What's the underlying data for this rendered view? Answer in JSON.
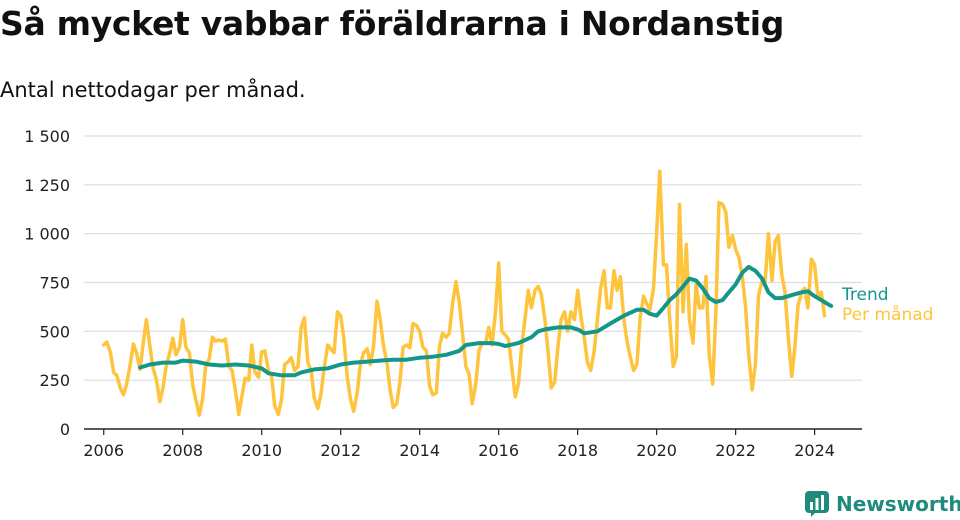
{
  "title": "Så mycket vabbar föräldrarna i Nordanstig",
  "subtitle": "Antal nettodagar per månad.",
  "brand": {
    "name": "Newsworthy",
    "icon": "bar-chart-bubble-icon"
  },
  "colors": {
    "monthly": "#FFC43D",
    "trend": "#14968A",
    "brand": "#1f8a7e",
    "grid": "#dddddd"
  },
  "chart_data": {
    "type": "line",
    "ylim": [
      0,
      1500
    ],
    "xlim": [
      2005.5,
      2025.2
    ],
    "yticks": [
      0,
      250,
      500,
      750,
      1000,
      1250,
      1500
    ],
    "ytick_labels": [
      "0",
      "250",
      "500",
      "750",
      "1 000",
      "1 250",
      "1 500"
    ],
    "xticks": [
      2006,
      2008,
      2010,
      2012,
      2014,
      2016,
      2018,
      2020,
      2022,
      2024
    ],
    "xtick_labels": [
      "2006",
      "2008",
      "2010",
      "2012",
      "2014",
      "2016",
      "2018",
      "2020",
      "2022",
      "2024"
    ],
    "grid": true,
    "series": [
      {
        "name": "Per månad",
        "color": "#FFC43D",
        "points": [
          [
            2006.0,
            430
          ],
          [
            2006.08,
            445
          ],
          [
            2006.17,
            390
          ],
          [
            2006.25,
            290
          ],
          [
            2006.33,
            275
          ],
          [
            2006.42,
            210
          ],
          [
            2006.5,
            175
          ],
          [
            2006.58,
            230
          ],
          [
            2006.67,
            330
          ],
          [
            2006.75,
            435
          ],
          [
            2006.83,
            390
          ],
          [
            2006.92,
            305
          ],
          [
            2007.0,
            440
          ],
          [
            2007.08,
            560
          ],
          [
            2007.17,
            420
          ],
          [
            2007.25,
            310
          ],
          [
            2007.33,
            255
          ],
          [
            2007.42,
            140
          ],
          [
            2007.5,
            210
          ],
          [
            2007.58,
            320
          ],
          [
            2007.67,
            390
          ],
          [
            2007.75,
            465
          ],
          [
            2007.83,
            380
          ],
          [
            2007.92,
            420
          ],
          [
            2008.0,
            560
          ],
          [
            2008.08,
            420
          ],
          [
            2008.17,
            390
          ],
          [
            2008.25,
            230
          ],
          [
            2008.33,
            150
          ],
          [
            2008.42,
            70
          ],
          [
            2008.5,
            150
          ],
          [
            2008.58,
            320
          ],
          [
            2008.67,
            360
          ],
          [
            2008.75,
            470
          ],
          [
            2008.83,
            450
          ],
          [
            2008.92,
            455
          ],
          [
            2009.0,
            450
          ],
          [
            2009.08,
            460
          ],
          [
            2009.17,
            320
          ],
          [
            2009.25,
            300
          ],
          [
            2009.33,
            200
          ],
          [
            2009.42,
            75
          ],
          [
            2009.5,
            170
          ],
          [
            2009.58,
            260
          ],
          [
            2009.67,
            250
          ],
          [
            2009.75,
            430
          ],
          [
            2009.83,
            290
          ],
          [
            2009.92,
            265
          ],
          [
            2010.0,
            395
          ],
          [
            2010.08,
            400
          ],
          [
            2010.17,
            300
          ],
          [
            2010.25,
            270
          ],
          [
            2010.33,
            120
          ],
          [
            2010.42,
            75
          ],
          [
            2010.5,
            150
          ],
          [
            2010.58,
            330
          ],
          [
            2010.67,
            345
          ],
          [
            2010.75,
            365
          ],
          [
            2010.83,
            300
          ],
          [
            2010.92,
            320
          ],
          [
            2011.0,
            520
          ],
          [
            2011.08,
            570
          ],
          [
            2011.17,
            340
          ],
          [
            2011.25,
            300
          ],
          [
            2011.33,
            160
          ],
          [
            2011.42,
            105
          ],
          [
            2011.5,
            180
          ],
          [
            2011.58,
            310
          ],
          [
            2011.67,
            430
          ],
          [
            2011.75,
            410
          ],
          [
            2011.83,
            390
          ],
          [
            2011.92,
            600
          ],
          [
            2012.0,
            580
          ],
          [
            2012.08,
            460
          ],
          [
            2012.17,
            260
          ],
          [
            2012.25,
            150
          ],
          [
            2012.33,
            90
          ],
          [
            2012.42,
            190
          ],
          [
            2012.5,
            330
          ],
          [
            2012.58,
            390
          ],
          [
            2012.67,
            410
          ],
          [
            2012.75,
            330
          ],
          [
            2012.83,
            420
          ],
          [
            2012.92,
            655
          ],
          [
            2013.0,
            560
          ],
          [
            2013.08,
            430
          ],
          [
            2013.17,
            340
          ],
          [
            2013.25,
            200
          ],
          [
            2013.33,
            110
          ],
          [
            2013.42,
            130
          ],
          [
            2013.5,
            240
          ],
          [
            2013.58,
            420
          ],
          [
            2013.67,
            430
          ],
          [
            2013.75,
            415
          ],
          [
            2013.83,
            540
          ],
          [
            2013.92,
            530
          ],
          [
            2014.0,
            500
          ],
          [
            2014.08,
            420
          ],
          [
            2014.17,
            400
          ],
          [
            2014.25,
            220
          ],
          [
            2014.33,
            175
          ],
          [
            2014.42,
            185
          ],
          [
            2014.5,
            420
          ],
          [
            2014.58,
            490
          ],
          [
            2014.67,
            470
          ],
          [
            2014.75,
            490
          ],
          [
            2014.83,
            640
          ],
          [
            2014.92,
            755
          ],
          [
            2015.0,
            650
          ],
          [
            2015.08,
            500
          ],
          [
            2015.17,
            320
          ],
          [
            2015.25,
            280
          ],
          [
            2015.33,
            130
          ],
          [
            2015.42,
            230
          ],
          [
            2015.5,
            400
          ],
          [
            2015.58,
            440
          ],
          [
            2015.67,
            440
          ],
          [
            2015.75,
            520
          ],
          [
            2015.83,
            430
          ],
          [
            2015.92,
            600
          ],
          [
            2016.0,
            850
          ],
          [
            2016.08,
            500
          ],
          [
            2016.17,
            480
          ],
          [
            2016.25,
            460
          ],
          [
            2016.33,
            320
          ],
          [
            2016.42,
            165
          ],
          [
            2016.5,
            230
          ],
          [
            2016.58,
            420
          ],
          [
            2016.67,
            570
          ],
          [
            2016.75,
            710
          ],
          [
            2016.83,
            620
          ],
          [
            2016.92,
            710
          ],
          [
            2017.0,
            730
          ],
          [
            2017.08,
            690
          ],
          [
            2017.17,
            560
          ],
          [
            2017.25,
            400
          ],
          [
            2017.33,
            210
          ],
          [
            2017.42,
            240
          ],
          [
            2017.5,
            420
          ],
          [
            2017.58,
            560
          ],
          [
            2017.67,
            600
          ],
          [
            2017.75,
            500
          ],
          [
            2017.83,
            600
          ],
          [
            2017.92,
            560
          ],
          [
            2018.0,
            710
          ],
          [
            2018.08,
            580
          ],
          [
            2018.17,
            460
          ],
          [
            2018.25,
            340
          ],
          [
            2018.33,
            300
          ],
          [
            2018.42,
            400
          ],
          [
            2018.5,
            560
          ],
          [
            2018.58,
            720
          ],
          [
            2018.67,
            810
          ],
          [
            2018.75,
            620
          ],
          [
            2018.83,
            620
          ],
          [
            2018.92,
            810
          ],
          [
            2019.0,
            710
          ],
          [
            2019.08,
            780
          ],
          [
            2019.17,
            560
          ],
          [
            2019.25,
            450
          ],
          [
            2019.33,
            370
          ],
          [
            2019.42,
            300
          ],
          [
            2019.5,
            330
          ],
          [
            2019.58,
            570
          ],
          [
            2019.67,
            680
          ],
          [
            2019.75,
            640
          ],
          [
            2019.83,
            610
          ],
          [
            2019.92,
            720
          ],
          [
            2020.0,
            1000
          ],
          [
            2020.08,
            1320
          ],
          [
            2020.17,
            840
          ],
          [
            2020.25,
            840
          ],
          [
            2020.33,
            560
          ],
          [
            2020.42,
            320
          ],
          [
            2020.5,
            370
          ],
          [
            2020.58,
            1150
          ],
          [
            2020.67,
            600
          ],
          [
            2020.75,
            945
          ],
          [
            2020.83,
            560
          ],
          [
            2020.92,
            440
          ],
          [
            2021.0,
            740
          ],
          [
            2021.08,
            620
          ],
          [
            2021.17,
            620
          ],
          [
            2021.25,
            780
          ],
          [
            2021.33,
            380
          ],
          [
            2021.42,
            230
          ],
          [
            2021.5,
            600
          ],
          [
            2021.58,
            1160
          ],
          [
            2021.67,
            1150
          ],
          [
            2021.75,
            1110
          ],
          [
            2021.83,
            930
          ],
          [
            2021.92,
            990
          ],
          [
            2022.0,
            920
          ],
          [
            2022.08,
            880
          ],
          [
            2022.17,
            780
          ],
          [
            2022.25,
            630
          ],
          [
            2022.33,
            380
          ],
          [
            2022.42,
            200
          ],
          [
            2022.5,
            330
          ],
          [
            2022.58,
            680
          ],
          [
            2022.67,
            760
          ],
          [
            2022.75,
            760
          ],
          [
            2022.83,
            1000
          ],
          [
            2022.92,
            760
          ],
          [
            2023.0,
            960
          ],
          [
            2023.08,
            990
          ],
          [
            2023.17,
            790
          ],
          [
            2023.25,
            700
          ],
          [
            2023.33,
            480
          ],
          [
            2023.42,
            270
          ],
          [
            2023.5,
            420
          ],
          [
            2023.58,
            630
          ],
          [
            2023.67,
            700
          ],
          [
            2023.75,
            720
          ],
          [
            2023.83,
            620
          ],
          [
            2023.92,
            870
          ],
          [
            2024.0,
            840
          ],
          [
            2024.08,
            680
          ],
          [
            2024.17,
            700
          ],
          [
            2024.25,
            580
          ]
        ]
      },
      {
        "name": "Trend",
        "color": "#14968A",
        "points": [
          [
            2006.92,
            315
          ],
          [
            2007.17,
            330
          ],
          [
            2007.5,
            340
          ],
          [
            2007.83,
            340
          ],
          [
            2008.0,
            350
          ],
          [
            2008.33,
            345
          ],
          [
            2008.67,
            330
          ],
          [
            2009.0,
            325
          ],
          [
            2009.33,
            330
          ],
          [
            2009.67,
            325
          ],
          [
            2010.0,
            310
          ],
          [
            2010.17,
            285
          ],
          [
            2010.5,
            275
          ],
          [
            2010.83,
            275
          ],
          [
            2011.0,
            290
          ],
          [
            2011.33,
            305
          ],
          [
            2011.67,
            310
          ],
          [
            2012.0,
            330
          ],
          [
            2012.33,
            340
          ],
          [
            2012.67,
            345
          ],
          [
            2013.0,
            350
          ],
          [
            2013.33,
            355
          ],
          [
            2013.67,
            355
          ],
          [
            2014.0,
            365
          ],
          [
            2014.33,
            370
          ],
          [
            2014.67,
            380
          ],
          [
            2015.0,
            400
          ],
          [
            2015.17,
            430
          ],
          [
            2015.5,
            440
          ],
          [
            2015.83,
            440
          ],
          [
            2016.0,
            435
          ],
          [
            2016.17,
            425
          ],
          [
            2016.5,
            440
          ],
          [
            2016.83,
            470
          ],
          [
            2017.0,
            500
          ],
          [
            2017.17,
            510
          ],
          [
            2017.5,
            520
          ],
          [
            2017.83,
            520
          ],
          [
            2018.0,
            510
          ],
          [
            2018.17,
            490
          ],
          [
            2018.5,
            500
          ],
          [
            2018.83,
            540
          ],
          [
            2019.0,
            560
          ],
          [
            2019.17,
            580
          ],
          [
            2019.5,
            610
          ],
          [
            2019.67,
            610
          ],
          [
            2019.83,
            590
          ],
          [
            2020.0,
            580
          ],
          [
            2020.17,
            620
          ],
          [
            2020.33,
            660
          ],
          [
            2020.5,
            690
          ],
          [
            2020.67,
            730
          ],
          [
            2020.83,
            770
          ],
          [
            2021.0,
            760
          ],
          [
            2021.17,
            720
          ],
          [
            2021.33,
            670
          ],
          [
            2021.5,
            650
          ],
          [
            2021.67,
            660
          ],
          [
            2021.83,
            700
          ],
          [
            2022.0,
            740
          ],
          [
            2022.17,
            800
          ],
          [
            2022.33,
            830
          ],
          [
            2022.5,
            810
          ],
          [
            2022.67,
            770
          ],
          [
            2022.83,
            700
          ],
          [
            2023.0,
            670
          ],
          [
            2023.17,
            670
          ],
          [
            2023.33,
            680
          ],
          [
            2023.5,
            690
          ],
          [
            2023.67,
            700
          ],
          [
            2023.83,
            705
          ],
          [
            2024.0,
            680
          ],
          [
            2024.17,
            660
          ],
          [
            2024.33,
            640
          ],
          [
            2024.42,
            630
          ]
        ]
      }
    ]
  }
}
